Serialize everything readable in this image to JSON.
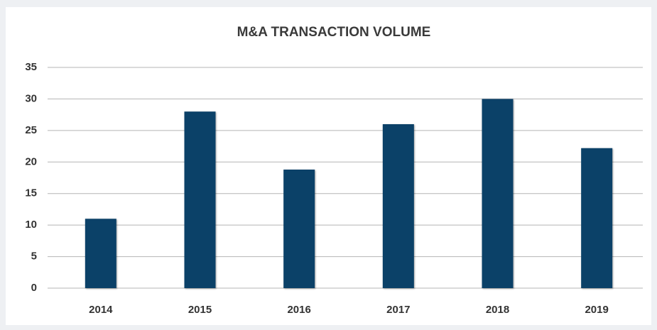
{
  "chart_data": {
    "type": "bar",
    "title": "M&A TRANSACTION VOLUME",
    "categories": [
      "2014",
      "2015",
      "2016",
      "2017",
      "2018",
      "2019"
    ],
    "values": [
      11,
      28,
      18.8,
      26,
      30,
      22.2
    ],
    "color": "#0b4168",
    "ylim": [
      0,
      35
    ],
    "yticks": [
      0,
      5,
      10,
      15,
      20,
      25,
      30,
      35
    ],
    "grid": true
  }
}
